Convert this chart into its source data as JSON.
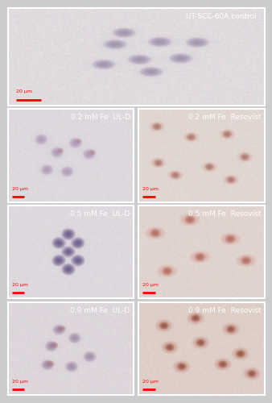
{
  "panels": [
    {
      "row": 0,
      "col": 0,
      "colspan": 2,
      "label": "UT-SCC-60A control",
      "label_color": "white",
      "bg_color": [
        0.88,
        0.86,
        0.87
      ],
      "cell_color": [
        0.55,
        0.48,
        0.62
      ],
      "cell_type": "control"
    },
    {
      "row": 1,
      "col": 0,
      "colspan": 1,
      "label": "0.2 mM Fe  UL-D",
      "label_color": "white",
      "bg_color": [
        0.87,
        0.85,
        0.87
      ],
      "cell_color": [
        0.6,
        0.5,
        0.65
      ],
      "cell_type": "uld_low"
    },
    {
      "row": 1,
      "col": 1,
      "colspan": 1,
      "label": "0.2 mM Fe  Resovist",
      "label_color": "white",
      "bg_color": [
        0.88,
        0.84,
        0.82
      ],
      "cell_color": [
        0.75,
        0.45,
        0.4
      ],
      "cell_type": "res_low"
    },
    {
      "row": 2,
      "col": 0,
      "colspan": 1,
      "label": "0.5 mM Fe  UL-D",
      "label_color": "white",
      "bg_color": [
        0.87,
        0.85,
        0.87
      ],
      "cell_color": [
        0.5,
        0.42,
        0.58
      ],
      "cell_type": "uld_mid"
    },
    {
      "row": 2,
      "col": 1,
      "colspan": 1,
      "label": "0.5 mM Fe  Resovist",
      "label_color": "white",
      "bg_color": [
        0.88,
        0.83,
        0.81
      ],
      "cell_color": [
        0.78,
        0.42,
        0.38
      ],
      "cell_type": "res_mid"
    },
    {
      "row": 3,
      "col": 0,
      "colspan": 1,
      "label": "0.9 mM Fe  UL-D",
      "label_color": "white",
      "bg_color": [
        0.87,
        0.84,
        0.86
      ],
      "cell_color": [
        0.62,
        0.48,
        0.6
      ],
      "cell_type": "uld_high"
    },
    {
      "row": 3,
      "col": 1,
      "colspan": 1,
      "label": "0.9 mM Fe  Resovist",
      "label_color": "white",
      "bg_color": [
        0.87,
        0.81,
        0.78
      ],
      "cell_color": [
        0.72,
        0.38,
        0.32
      ],
      "cell_type": "res_high"
    }
  ],
  "figure_bg": "#e8e8e8",
  "panel_border_color": "white",
  "scale_bar_color": "red",
  "scale_bar_text": "20 μm",
  "label_fontsize": 6.5,
  "scale_fontsize": 4.5,
  "outer_bg": "#cccccc"
}
